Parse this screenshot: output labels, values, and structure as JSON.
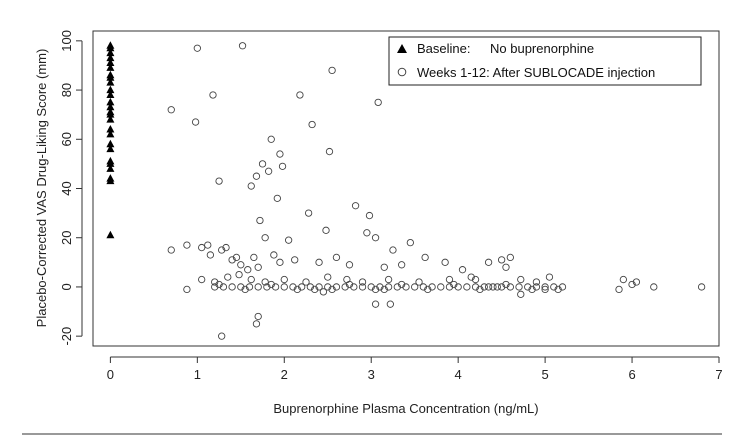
{
  "chart_data": {
    "type": "scatter",
    "xlabel": "Buprenorphine Plasma Concentration (ng/mL)",
    "ylabel": "Placebo-Corrected VAS Drug-Liking Score (mm)",
    "xlim": [
      -0.2,
      7.0
    ],
    "ylim": [
      -24,
      104
    ],
    "x_ticks": [
      0,
      1,
      2,
      3,
      4,
      5,
      6,
      7
    ],
    "y_ticks": [
      -20,
      0,
      20,
      40,
      60,
      80,
      100
    ],
    "grid": false,
    "legend_position": "top-right",
    "series": [
      {
        "name": "Baseline:",
        "legend_note": "No buprenorphine",
        "marker": "filled-triangle",
        "color": "#000000",
        "points": [
          [
            0,
            98
          ],
          [
            0,
            97
          ],
          [
            0,
            95
          ],
          [
            0,
            93
          ],
          [
            0,
            91
          ],
          [
            0,
            89
          ],
          [
            0,
            86
          ],
          [
            0,
            85
          ],
          [
            0,
            83
          ],
          [
            0,
            80
          ],
          [
            0,
            78
          ],
          [
            0,
            75
          ],
          [
            0,
            73
          ],
          [
            0,
            71
          ],
          [
            0,
            70
          ],
          [
            0,
            68
          ],
          [
            0,
            64
          ],
          [
            0,
            62
          ],
          [
            0,
            58
          ],
          [
            0,
            56
          ],
          [
            0,
            51
          ],
          [
            0,
            50
          ],
          [
            0,
            48
          ],
          [
            0,
            44
          ],
          [
            0,
            43
          ],
          [
            0,
            21
          ]
        ]
      },
      {
        "name": "Weeks 1-12: After SUBLOCADE injection",
        "marker": "open-circle",
        "color": "#444444",
        "points": [
          [
            0.7,
            72
          ],
          [
            1.0,
            97
          ],
          [
            1.52,
            98
          ],
          [
            0.98,
            67
          ],
          [
            1.18,
            78
          ],
          [
            1.85,
            60
          ],
          [
            2.55,
            88
          ],
          [
            3.08,
            75
          ],
          [
            2.18,
            78
          ],
          [
            2.32,
            66
          ],
          [
            2.52,
            55
          ],
          [
            1.25,
            43
          ],
          [
            1.62,
            41
          ],
          [
            1.68,
            45
          ],
          [
            1.75,
            50
          ],
          [
            1.82,
            47
          ],
          [
            1.95,
            54
          ],
          [
            1.98,
            49
          ],
          [
            1.72,
            27
          ],
          [
            1.78,
            20
          ],
          [
            1.92,
            36
          ],
          [
            2.05,
            19
          ],
          [
            2.28,
            30
          ],
          [
            2.48,
            23
          ],
          [
            2.82,
            33
          ],
          [
            2.98,
            29
          ],
          [
            2.95,
            22
          ],
          [
            3.05,
            20
          ],
          [
            3.25,
            15
          ],
          [
            3.45,
            18
          ],
          [
            3.62,
            12
          ],
          [
            3.85,
            10
          ],
          [
            0.7,
            15
          ],
          [
            0.88,
            17
          ],
          [
            1.05,
            16
          ],
          [
            1.12,
            17
          ],
          [
            1.15,
            13
          ],
          [
            1.28,
            15
          ],
          [
            1.33,
            16
          ],
          [
            1.4,
            11
          ],
          [
            1.45,
            12
          ],
          [
            1.5,
            9
          ],
          [
            1.58,
            7
          ],
          [
            1.65,
            12
          ],
          [
            1.7,
            8
          ],
          [
            1.88,
            13
          ],
          [
            1.95,
            10
          ],
          [
            2.12,
            11
          ],
          [
            2.4,
            10
          ],
          [
            2.6,
            12
          ],
          [
            2.75,
            9
          ],
          [
            3.15,
            8
          ],
          [
            3.35,
            9
          ],
          [
            4.05,
            7
          ],
          [
            4.15,
            4
          ],
          [
            4.35,
            10
          ],
          [
            4.5,
            11
          ],
          [
            4.6,
            12
          ],
          [
            4.72,
            3
          ],
          [
            0.88,
            -1
          ],
          [
            1.05,
            3
          ],
          [
            1.2,
            2
          ],
          [
            1.35,
            4
          ],
          [
            1.48,
            5
          ],
          [
            1.62,
            3
          ],
          [
            1.78,
            2
          ],
          [
            2.0,
            3
          ],
          [
            2.25,
            2
          ],
          [
            2.5,
            4
          ],
          [
            2.72,
            3
          ],
          [
            2.9,
            2
          ],
          [
            3.2,
            3
          ],
          [
            3.55,
            2
          ],
          [
            3.9,
            3
          ],
          [
            4.2,
            3
          ],
          [
            4.55,
            8
          ],
          [
            4.9,
            2
          ],
          [
            5.05,
            4
          ],
          [
            5.9,
            3
          ],
          [
            6.05,
            2
          ],
          [
            6.0,
            1
          ],
          [
            5.85,
            -1
          ],
          [
            6.25,
            0
          ],
          [
            6.8,
            0
          ],
          [
            1.28,
            -20
          ],
          [
            1.7,
            -12
          ],
          [
            1.68,
            -15
          ],
          [
            3.05,
            -7
          ],
          [
            3.22,
            -7
          ],
          [
            4.72,
            -3
          ],
          [
            5.0,
            -1
          ],
          [
            5.15,
            -1
          ],
          [
            1.2,
            0
          ],
          [
            1.3,
            0
          ],
          [
            1.4,
            0
          ],
          [
            1.5,
            0
          ],
          [
            1.6,
            0
          ],
          [
            1.7,
            0
          ],
          [
            1.8,
            0
          ],
          [
            1.9,
            0
          ],
          [
            2.0,
            0
          ],
          [
            2.1,
            0
          ],
          [
            2.2,
            0
          ],
          [
            2.3,
            0
          ],
          [
            2.4,
            0
          ],
          [
            2.5,
            0
          ],
          [
            2.6,
            0
          ],
          [
            2.7,
            0
          ],
          [
            2.8,
            0
          ],
          [
            2.9,
            0
          ],
          [
            3.0,
            0
          ],
          [
            3.1,
            0
          ],
          [
            3.2,
            0
          ],
          [
            3.3,
            0
          ],
          [
            3.4,
            0
          ],
          [
            3.5,
            0
          ],
          [
            3.6,
            0
          ],
          [
            3.7,
            0
          ],
          [
            3.8,
            0
          ],
          [
            3.9,
            0
          ],
          [
            4.0,
            0
          ],
          [
            4.1,
            0
          ],
          [
            4.2,
            0
          ],
          [
            4.3,
            0
          ],
          [
            4.4,
            0
          ],
          [
            4.5,
            0
          ],
          [
            4.6,
            0
          ],
          [
            4.7,
            0
          ],
          [
            4.8,
            0
          ],
          [
            4.9,
            0
          ],
          [
            5.0,
            0
          ],
          [
            5.1,
            0
          ],
          [
            5.2,
            0
          ],
          [
            1.25,
            1
          ],
          [
            1.55,
            -1
          ],
          [
            1.85,
            1
          ],
          [
            2.15,
            -1
          ],
          [
            2.45,
            -2
          ],
          [
            2.75,
            1
          ],
          [
            3.05,
            -1
          ],
          [
            3.35,
            1
          ],
          [
            3.65,
            -1
          ],
          [
            3.95,
            1
          ],
          [
            4.25,
            -1
          ],
          [
            4.55,
            1
          ],
          [
            4.85,
            -1
          ],
          [
            2.35,
            -1
          ],
          [
            2.55,
            -1
          ],
          [
            3.15,
            -1
          ],
          [
            4.45,
            0
          ],
          [
            4.35,
            0
          ]
        ]
      }
    ]
  }
}
